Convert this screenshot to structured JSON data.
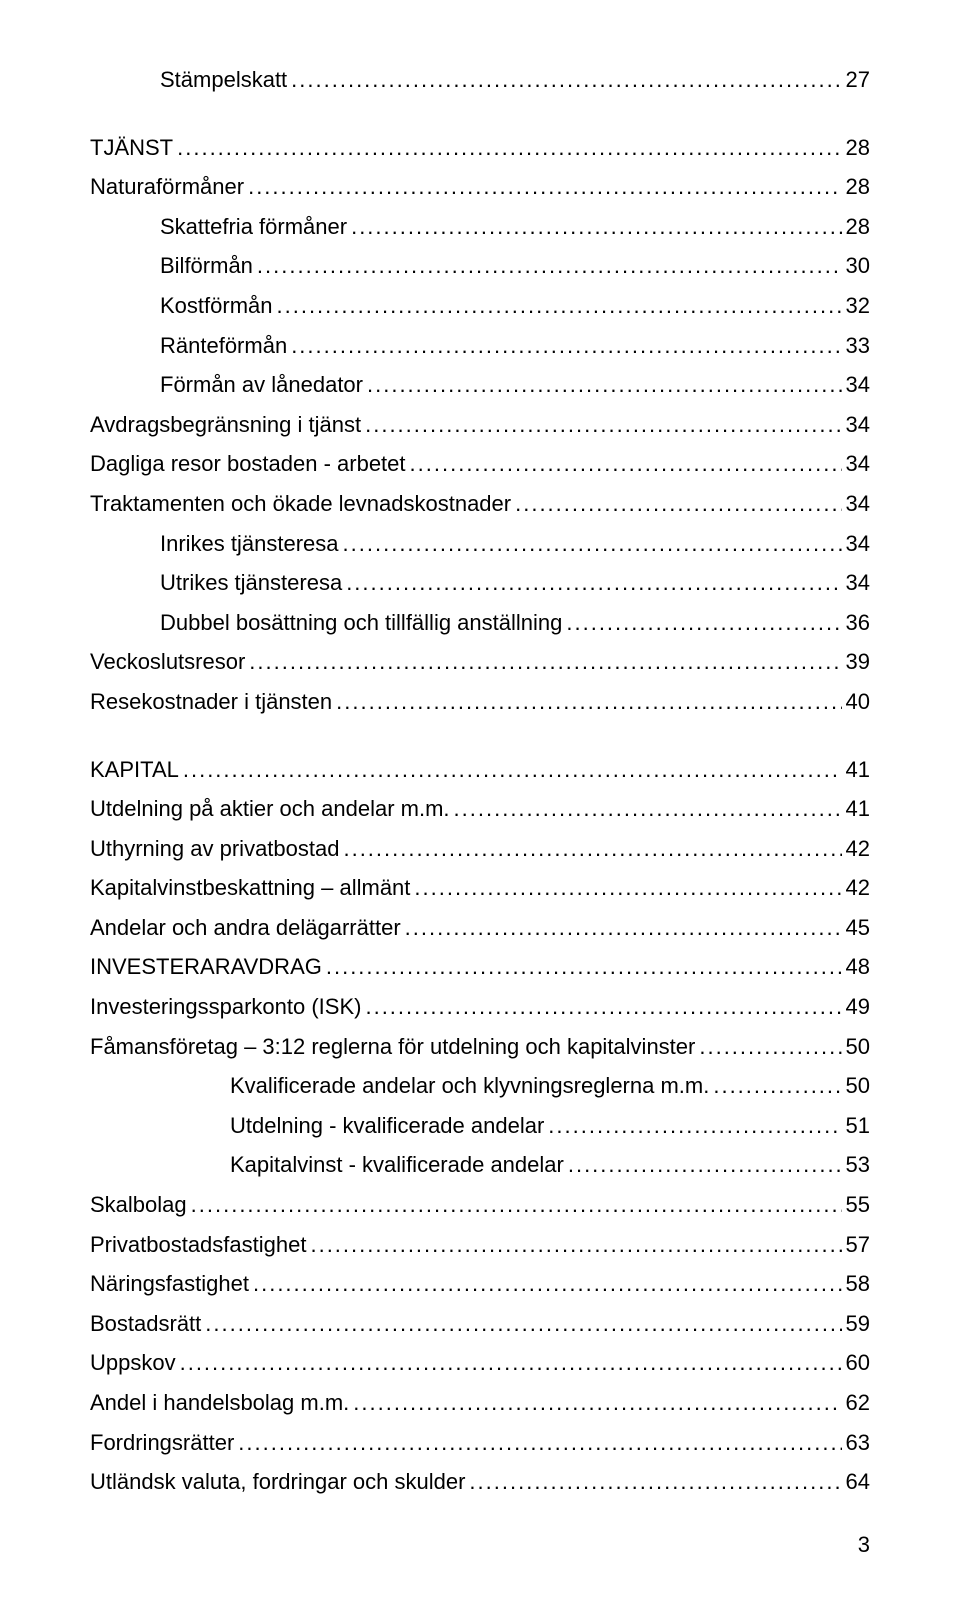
{
  "page_number": "3",
  "font": {
    "family": "Arial",
    "size_pt": 22,
    "color": "#000000",
    "background": "#ffffff",
    "line_height": 1.8
  },
  "entries": [
    {
      "label": "Stämpelskatt",
      "page": "27",
      "indent": 1,
      "gap_after": true
    },
    {
      "label": "TJÄNST",
      "page": "28",
      "indent": 0
    },
    {
      "label": "Naturaförmåner",
      "page": "28",
      "indent": 0
    },
    {
      "label": "Skattefria förmåner",
      "page": "28",
      "indent": 1
    },
    {
      "label": "Bilförmån",
      "page": "30",
      "indent": 1
    },
    {
      "label": "Kostförmån",
      "page": "32",
      "indent": 1
    },
    {
      "label": "Ränteförmån",
      "page": "33",
      "indent": 1
    },
    {
      "label": "Förmån av lånedator",
      "page": "34",
      "indent": 1
    },
    {
      "label": "Avdragsbegränsning i tjänst",
      "page": "34",
      "indent": 0
    },
    {
      "label": "Dagliga resor bostaden - arbetet",
      "page": "34",
      "indent": 0
    },
    {
      "label": "Traktamenten och ökade levnadskostnader",
      "page": "34",
      "indent": 0
    },
    {
      "label": "Inrikes tjänsteresa",
      "page": "34",
      "indent": 1
    },
    {
      "label": "Utrikes tjänsteresa",
      "page": "34",
      "indent": 1
    },
    {
      "label": "Dubbel bosättning och tillfällig anställning",
      "page": "36",
      "indent": 1
    },
    {
      "label": "Veckoslutsresor",
      "page": "39",
      "indent": 0
    },
    {
      "label": "Resekostnader i tjänsten",
      "page": "40",
      "indent": 0,
      "gap_after": true
    },
    {
      "label": "KAPITAL",
      "page": "41",
      "indent": 0
    },
    {
      "label": "Utdelning på aktier och andelar m.m.",
      "page": "41",
      "indent": 0
    },
    {
      "label": "Uthyrning av privatbostad",
      "page": "42",
      "indent": 0
    },
    {
      "label": "Kapitalvinstbeskattning – allmänt",
      "page": "42",
      "indent": 0
    },
    {
      "label": "Andelar och andra delägarrätter",
      "page": "45",
      "indent": 0
    },
    {
      "label": "INVESTERARAVDRAG",
      "page": "48",
      "indent": 0
    },
    {
      "label": "Investeringssparkonto (ISK)",
      "page": "49",
      "indent": 0
    },
    {
      "label": "Fåmansföretag – 3:12 reglerna för utdelning och kapitalvinster",
      "page": "50",
      "indent": 0
    },
    {
      "label": "Kvalificerade andelar och klyvningsreglerna m.m.",
      "page": "50",
      "indent": 2
    },
    {
      "label": "Utdelning - kvalificerade andelar",
      "page": "51",
      "indent": 2
    },
    {
      "label": "Kapitalvinst - kvalificerade andelar",
      "page": "53",
      "indent": 2
    },
    {
      "label": "Skalbolag",
      "page": "55",
      "indent": 0
    },
    {
      "label": "Privatbostadsfastighet",
      "page": "57",
      "indent": 0
    },
    {
      "label": "Näringsfastighet",
      "page": "58",
      "indent": 0
    },
    {
      "label": "Bostadsrätt",
      "page": "59",
      "indent": 0
    },
    {
      "label": "Uppskov",
      "page": "60",
      "indent": 0
    },
    {
      "label": "Andel i handelsbolag m.m.",
      "page": "62",
      "indent": 0
    },
    {
      "label": "Fordringsrätter",
      "page": "63",
      "indent": 0
    },
    {
      "label": "Utländsk valuta, fordringar och skulder",
      "page": "64",
      "indent": 0
    }
  ]
}
